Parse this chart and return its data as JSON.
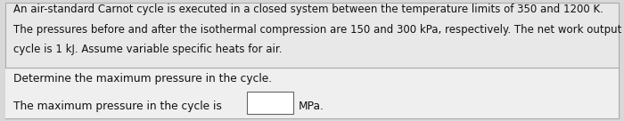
{
  "background_color": "#d8d8d8",
  "top_section_color": "#e8e8e8",
  "bottom_section_color": "#efefef",
  "text_color": "#111111",
  "paragraph_text_line1": "An air-standard Carnot cycle is executed in a closed system between the temperature limits of 350 and 1200 K.",
  "paragraph_text_line2": "The pressures before and after the isothermal compression are 150 and 300 kPa, respectively. The net work output per",
  "paragraph_text_line3": "cycle is 1 kJ. Assume variable specific heats for air.",
  "question_text": "Determine the maximum pressure in the cycle.",
  "answer_prefix": "The maximum pressure in the cycle is",
  "answer_suffix": "MPa.",
  "font_size_paragraph": 8.5,
  "font_size_question": 8.8,
  "font_size_answer": 8.8,
  "outer_box_edge_color": "#aaaaaa",
  "divider_color": "#aaaaaa",
  "answer_box_edge_color": "#666666",
  "answer_box_face_color": "#ffffff"
}
